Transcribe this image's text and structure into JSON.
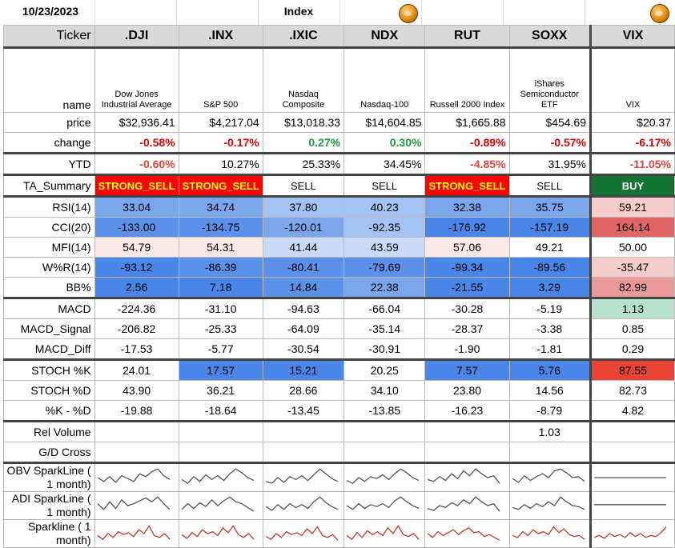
{
  "sheet": {
    "date": "10/23/2023",
    "title": "Index"
  },
  "columns": [
    {
      "ticker": ".DJI",
      "name": "Dow Jones Industrial Average"
    },
    {
      "ticker": ".INX",
      "name": "S&P 500"
    },
    {
      "ticker": ".IXIC",
      "name": "Nasdaq Composite"
    },
    {
      "ticker": "NDX",
      "name": "Nasdaq-100"
    },
    {
      "ticker": "RUT",
      "name": "Russell 2000 Index"
    },
    {
      "ticker": "SOXX",
      "name": "iShares Semiconductor ETF"
    },
    {
      "ticker": "VIX",
      "name": "VIX"
    }
  ],
  "labels": {
    "ticker": "Ticker",
    "name": "name",
    "price": "price",
    "change": "change",
    "ytd": "YTD",
    "ta": "TA_Summary",
    "rsi": "RSI(14)",
    "cci": "CCI(20)",
    "mfi": "MFI(14)",
    "wr": "W%R(14)",
    "bb": "BB%",
    "macd": "MACD",
    "macd_signal": "MACD_Signal",
    "macd_diff": "MACD_Diff",
    "stochk": "STOCH %K",
    "stochd": "STOCH %D",
    "kd": "%K - %D",
    "relvol": "Rel Volume",
    "gd": "G/D Cross",
    "obv": "OBV SparkLine ( 1 month)",
    "adi": "ADI SparkLine ( 1 month)",
    "spark": "Sparkline ( 1 month)"
  },
  "rows": {
    "price": [
      "$32,936.41",
      "$4,217.04",
      "$13,018.33",
      "$14,604.85",
      "$1,665.88",
      "$454.69",
      "$20.37"
    ],
    "change": [
      "-0.58%",
      "-0.17%",
      "0.27%",
      "0.30%",
      "-0.89%",
      "-0.57%",
      "-6.17%"
    ],
    "ytd": [
      "-0.60%",
      "10.27%",
      "25.33%",
      "34.45%",
      "-4.85%",
      "31.95%",
      "-11.05%"
    ],
    "ta": [
      "STRONG_SELL",
      "STRONG_SELL",
      "SELL",
      "SELL",
      "STRONG_SELL",
      "SELL",
      "BUY"
    ],
    "rsi": [
      "33.04",
      "34.74",
      "37.80",
      "40.23",
      "32.38",
      "35.75",
      "59.21"
    ],
    "cci": [
      "-133.00",
      "-134.75",
      "-120.01",
      "-92.35",
      "-176.92",
      "-157.19",
      "164.14"
    ],
    "mfi": [
      "54.79",
      "54.31",
      "41.44",
      "43.59",
      "57.06",
      "49.21",
      "50.00"
    ],
    "wr": [
      "-93.12",
      "-86.39",
      "-80.41",
      "-79.69",
      "-99.34",
      "-89.56",
      "-35.47"
    ],
    "bb": [
      "2.56",
      "7.18",
      "14.84",
      "22.38",
      "-21.55",
      "3.29",
      "82.99"
    ],
    "macd": [
      "-224.36",
      "-31.10",
      "-94.63",
      "-66.04",
      "-30.28",
      "-5.19",
      "1.13"
    ],
    "macd_signal": [
      "-206.82",
      "-25.33",
      "-64.09",
      "-35.14",
      "-28.37",
      "-3.38",
      "0.85"
    ],
    "macd_diff": [
      "-17.53",
      "-5.77",
      "-30.54",
      "-30.91",
      "-1.90",
      "-1.81",
      "0.29"
    ],
    "stochk": [
      "24.01",
      "17.57",
      "15.21",
      "20.25",
      "7.57",
      "5.76",
      "87.55"
    ],
    "stochd": [
      "43.90",
      "36.21",
      "28.66",
      "34.10",
      "23.80",
      "14.56",
      "82.73"
    ],
    "kd": [
      "-19.88",
      "-18.64",
      "-13.45",
      "-13.85",
      "-16.23",
      "-8.79",
      "4.82"
    ],
    "relvol": [
      "",
      "",
      "",
      "",
      "",
      "1.03",
      ""
    ],
    "gd": [
      "",
      "",
      "",
      "",
      "",
      "",
      ""
    ]
  },
  "colors": {
    "header_bg": "#d9d9d9",
    "strong_sell_bg": "#ff0000",
    "strong_sell_fg": "#ffff00",
    "buy_bg": "#137333",
    "pos": "#1e9a3a",
    "neg": "#e00000",
    "blue_dark": "#4a86e8",
    "blue_mid": "#7ba6ec",
    "blue_light": "#a4c2f4",
    "blue_pale": "#c9daf8",
    "red_dark": "#e06666",
    "red_mid": "#ea9999",
    "red_light": "#f4cccc",
    "red_pale": "#fce8e6",
    "green_light": "#b7e1cd",
    "spark_gray": "#555555",
    "spark_red": "#c0392b"
  },
  "heat": {
    "rsi": [
      "#7ba6ec",
      "#7ba6ec",
      "#a4c2f4",
      "#a4c2f4",
      "#7ba6ec",
      "#7ba6ec",
      "#f4cccc"
    ],
    "cci": [
      "#5c91ea",
      "#5c91ea",
      "#7ba6ec",
      "#a4c2f4",
      "#4a86e8",
      "#4a86e8",
      "#e06666"
    ],
    "mfi": [
      "#fce8e6",
      "#fce8e6",
      "#c9daf8",
      "#c9daf8",
      "#fce8e6",
      "#ffffff",
      "#ffffff"
    ],
    "wr": [
      "#4a86e8",
      "#5c91ea",
      "#5c91ea",
      "#5c91ea",
      "#4a86e8",
      "#4a86e8",
      "#f4cccc"
    ],
    "bb": [
      "#4a86e8",
      "#4a86e8",
      "#5c91ea",
      "#7ba6ec",
      "#4a86e8",
      "#4a86e8",
      "#ea9999"
    ],
    "macd": [
      "",
      "",
      "",
      "",
      "",
      "",
      "#b7e1cd"
    ],
    "stochk": [
      "",
      "#4a86e8",
      "#4a86e8",
      "",
      "#4a86e8",
      "#4a86e8",
      "#e84335"
    ]
  },
  "sparklines": {
    "obv": [
      [
        0.5,
        0.3,
        0.55,
        0.25,
        0.6,
        0.45,
        0.3,
        0.7,
        0.55,
        0.8,
        0.95,
        0.6,
        0.4
      ],
      [
        0.4,
        0.2,
        0.55,
        0.3,
        0.65,
        0.4,
        0.6,
        0.35,
        0.7,
        0.95,
        0.75,
        0.5,
        0.35
      ],
      [
        0.3,
        0.2,
        0.5,
        0.25,
        0.55,
        0.4,
        0.6,
        0.35,
        0.65,
        0.95,
        0.7,
        0.45,
        0.3
      ],
      [
        0.35,
        0.2,
        0.5,
        0.3,
        0.55,
        0.45,
        0.65,
        0.4,
        0.7,
        0.95,
        0.75,
        0.5,
        0.35
      ],
      [
        0.4,
        0.3,
        0.55,
        0.35,
        0.7,
        0.45,
        0.85,
        0.6,
        0.95,
        0.7,
        0.5,
        0.6,
        0.2
      ],
      [
        0.45,
        0.25,
        0.6,
        0.35,
        0.55,
        0.7,
        0.5,
        0.85,
        0.95,
        0.75,
        0.5,
        0.55,
        0.3
      ],
      [
        0.5,
        0.5,
        0.5,
        0.5,
        0.5,
        0.5,
        0.5,
        0.5,
        0.5,
        0.5,
        0.5,
        0.5,
        0.5
      ]
    ],
    "adi": [
      [
        0.6,
        0.3,
        0.7,
        0.35,
        0.8,
        0.5,
        0.6,
        0.75,
        0.9,
        0.7,
        0.95,
        0.6,
        0.3
      ],
      [
        0.3,
        0.6,
        0.35,
        0.65,
        0.45,
        0.8,
        0.5,
        0.75,
        0.95,
        0.7,
        0.6,
        0.4,
        0.2
      ],
      [
        0.45,
        0.25,
        0.55,
        0.3,
        0.6,
        0.4,
        0.55,
        0.35,
        0.7,
        0.95,
        0.65,
        0.45,
        0.3
      ],
      [
        0.5,
        0.3,
        0.6,
        0.35,
        0.55,
        0.45,
        0.6,
        0.4,
        0.75,
        0.95,
        0.7,
        0.5,
        0.35
      ],
      [
        0.35,
        0.25,
        0.5,
        0.4,
        0.65,
        0.5,
        0.8,
        0.6,
        0.95,
        0.7,
        0.5,
        0.6,
        0.2
      ],
      [
        0.4,
        0.3,
        0.55,
        0.35,
        0.6,
        0.45,
        0.7,
        0.5,
        0.95,
        0.7,
        0.5,
        0.45,
        0.3
      ],
      [
        0.55,
        0.55,
        0.55,
        0.55,
        0.55,
        0.55,
        0.55,
        0.55,
        0.55,
        0.55,
        0.55,
        0.55,
        0.55
      ]
    ],
    "price": [
      [
        0.4,
        0.2,
        0.5,
        0.3,
        0.6,
        0.45,
        0.55,
        0.35,
        0.7,
        0.5,
        0.9,
        0.4,
        0.3,
        0.5,
        0.2
      ],
      [
        0.45,
        0.25,
        0.55,
        0.35,
        0.7,
        0.5,
        0.6,
        0.4,
        0.8,
        0.55,
        0.9,
        0.45,
        0.3,
        0.5,
        0.2
      ],
      [
        0.35,
        0.2,
        0.5,
        0.3,
        0.6,
        0.45,
        0.55,
        0.4,
        0.75,
        0.5,
        0.85,
        0.4,
        0.3,
        0.45,
        0.15
      ],
      [
        0.4,
        0.2,
        0.55,
        0.3,
        0.65,
        0.45,
        0.6,
        0.4,
        0.8,
        0.5,
        0.9,
        0.45,
        0.35,
        0.5,
        0.2
      ],
      [
        0.5,
        0.3,
        0.6,
        0.4,
        0.55,
        0.7,
        0.45,
        0.65,
        0.8,
        0.55,
        0.6,
        0.35,
        0.45,
        0.3,
        0.15
      ],
      [
        0.4,
        0.3,
        0.6,
        0.4,
        0.7,
        0.5,
        0.6,
        0.45,
        0.85,
        0.55,
        0.75,
        0.45,
        0.35,
        0.4,
        0.2
      ],
      [
        0.3,
        0.4,
        0.25,
        0.5,
        0.35,
        0.45,
        0.3,
        0.55,
        0.35,
        0.5,
        0.3,
        0.4,
        0.35,
        0.55,
        0.85
      ]
    ]
  }
}
